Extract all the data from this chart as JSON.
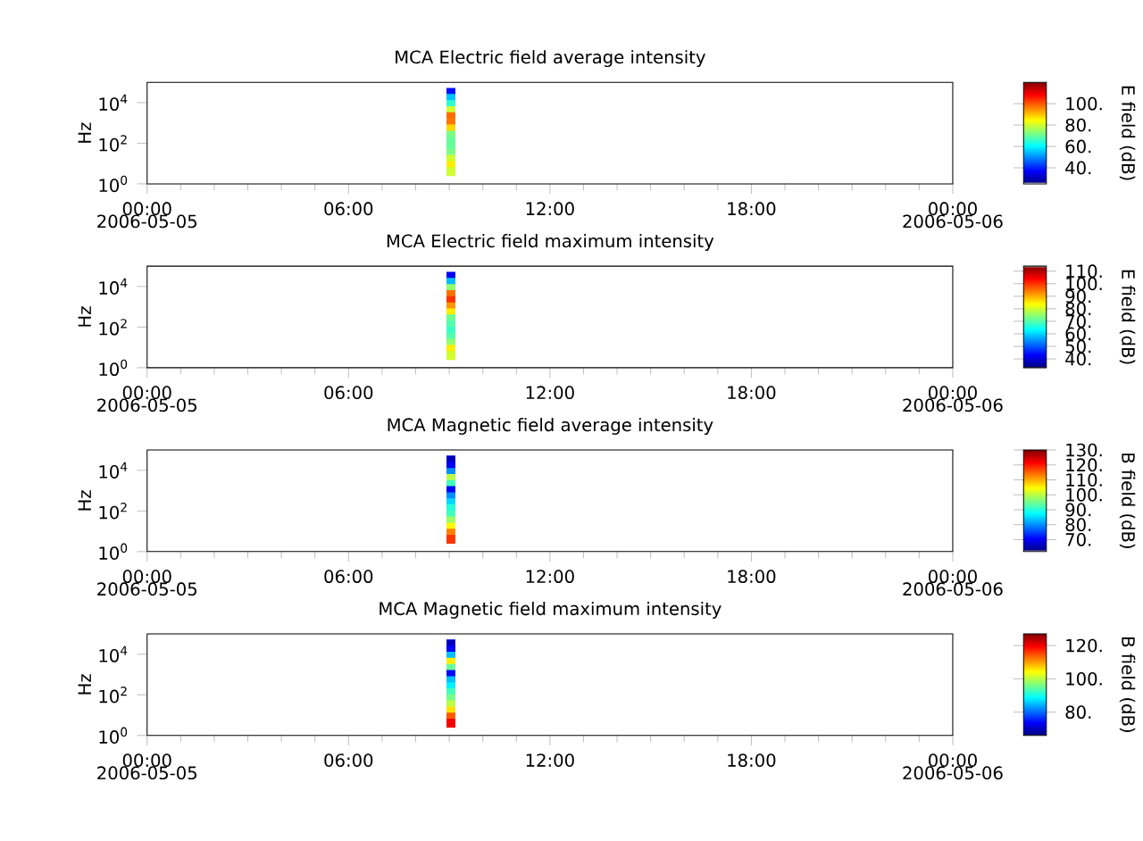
{
  "chart_data": [
    {
      "type": "scatter",
      "title": "MCA  Electric field average intensity",
      "ylabel": "Hz",
      "clabel": "E field (dB)",
      "marker": "square",
      "x": [
        "2006-05-05T09:03",
        "2006-05-05T09:03",
        "2006-05-05T09:03",
        "2006-05-05T09:03",
        "2006-05-05T09:03",
        "2006-05-05T09:03",
        "2006-05-05T09:03",
        "2006-05-05T09:03",
        "2006-05-05T09:03",
        "2006-05-05T09:03",
        "2006-05-05T09:03",
        "2006-05-05T09:03",
        "2006-05-05T09:03",
        "2006-05-05T09:03"
      ],
      "values": [
        32000,
        16000,
        7900,
        4000,
        2000,
        1000,
        500,
        250,
        130,
        63,
        32,
        16,
        8,
        4
      ],
      "cvalues": [
        38,
        55,
        65,
        80,
        98,
        97,
        88,
        72,
        70,
        70,
        72,
        80,
        86,
        80
      ],
      "xlim": [
        "2006-05-05T00:00",
        "2006-05-06T00:00"
      ],
      "xticks": [
        {
          "value": "2006-05-05T00:00",
          "label": "00:00"
        },
        {
          "value": "2006-05-05T06:00",
          "label": "06:00"
        },
        {
          "value": "2006-05-05T12:00",
          "label": "12:00"
        },
        {
          "value": "2006-05-05T18:00",
          "label": "18:00"
        },
        {
          "value": "2006-05-06T00:00",
          "label": "00:00"
        }
      ],
      "ylim": [
        1,
        100000
      ],
      "yticks": [
        {
          "value": 1,
          "label": "10$^{0}$"
        },
        {
          "value": 100,
          "label": "10$^{2}$"
        },
        {
          "value": 10000,
          "label": "10$^{4}$"
        }
      ],
      "log": "y",
      "clim": [
        25,
        120
      ],
      "cticks": [
        {
          "value": 40,
          "label": "40."
        },
        {
          "value": 60,
          "label": "60."
        },
        {
          "value": 80,
          "label": "80."
        },
        {
          "value": 100,
          "label": "100."
        }
      ],
      "annotations": [
        "2006-05-05",
        "2006-05-06"
      ]
    },
    {
      "type": "scatter",
      "title": "MCA  Electric field maximum intensity",
      "ylabel": "Hz",
      "clabel": "E field (dB)",
      "marker": "square",
      "x": [
        "2006-05-05T09:03",
        "2006-05-05T09:03",
        "2006-05-05T09:03",
        "2006-05-05T09:03",
        "2006-05-05T09:03",
        "2006-05-05T09:03",
        "2006-05-05T09:03",
        "2006-05-05T09:03",
        "2006-05-05T09:03",
        "2006-05-05T09:03",
        "2006-05-05T09:03",
        "2006-05-05T09:03",
        "2006-05-05T09:03",
        "2006-05-05T09:03"
      ],
      "values": [
        32000,
        16000,
        7900,
        4000,
        2000,
        1000,
        500,
        250,
        130,
        63,
        32,
        16,
        8,
        4
      ],
      "cvalues": [
        42,
        58,
        75,
        95,
        100,
        92,
        85,
        72,
        70,
        68,
        70,
        75,
        85,
        80
      ],
      "xlim": [
        "2006-05-05T00:00",
        "2006-05-06T00:00"
      ],
      "xticks": [
        {
          "value": "2006-05-05T00:00",
          "label": "00:00"
        },
        {
          "value": "2006-05-05T06:00",
          "label": "06:00"
        },
        {
          "value": "2006-05-05T12:00",
          "label": "12:00"
        },
        {
          "value": "2006-05-05T18:00",
          "label": "18:00"
        },
        {
          "value": "2006-05-06T00:00",
          "label": "00:00"
        }
      ],
      "ylim": [
        1,
        100000
      ],
      "yticks": [
        {
          "value": 1,
          "label": "10$^{0}$"
        },
        {
          "value": 100,
          "label": "10$^{2}$"
        },
        {
          "value": 10000,
          "label": "10$^{4}$"
        }
      ],
      "log": "y",
      "clim": [
        33,
        114
      ],
      "cticks": [
        {
          "value": 40,
          "label": "40."
        },
        {
          "value": 50,
          "label": "50."
        },
        {
          "value": 60,
          "label": "60."
        },
        {
          "value": 70,
          "label": "70."
        },
        {
          "value": 80,
          "label": "80."
        },
        {
          "value": 90,
          "label": "90."
        },
        {
          "value": 100,
          "label": "100."
        },
        {
          "value": 110,
          "label": "110."
        }
      ],
      "annotations": [
        "2006-05-05",
        "2006-05-06"
      ]
    },
    {
      "type": "scatter",
      "title": "MCA  Magnetic field average intensity",
      "ylabel": "Hz",
      "clabel": "B field (dB)",
      "marker": "square",
      "x": [
        "2006-05-05T09:03",
        "2006-05-05T09:03",
        "2006-05-05T09:03",
        "2006-05-05T09:03",
        "2006-05-05T09:03",
        "2006-05-05T09:03",
        "2006-05-05T09:03",
        "2006-05-05T09:03",
        "2006-05-05T09:03",
        "2006-05-05T09:03",
        "2006-05-05T09:03",
        "2006-05-05T09:03",
        "2006-05-05T09:03",
        "2006-05-05T09:03"
      ],
      "values": [
        32000,
        16000,
        7900,
        4000,
        2000,
        1000,
        500,
        250,
        130,
        63,
        32,
        16,
        8,
        4
      ],
      "cvalues": [
        66,
        70,
        80,
        100,
        92,
        70,
        80,
        85,
        90,
        92,
        98,
        105,
        113,
        118
      ],
      "xlim": [
        "2006-05-05T00:00",
        "2006-05-06T00:00"
      ],
      "xticks": [
        {
          "value": "2006-05-05T00:00",
          "label": "00:00"
        },
        {
          "value": "2006-05-05T06:00",
          "label": "06:00"
        },
        {
          "value": "2006-05-05T12:00",
          "label": "12:00"
        },
        {
          "value": "2006-05-05T18:00",
          "label": "18:00"
        },
        {
          "value": "2006-05-06T00:00",
          "label": "00:00"
        }
      ],
      "ylim": [
        1,
        100000
      ],
      "yticks": [
        {
          "value": 1,
          "label": "10$^{0}$"
        },
        {
          "value": 100,
          "label": "10$^{2}$"
        },
        {
          "value": 10000,
          "label": "10$^{4}$"
        }
      ],
      "log": "y",
      "clim": [
        62,
        130
      ],
      "cticks": [
        {
          "value": 70,
          "label": "70."
        },
        {
          "value": 80,
          "label": "80."
        },
        {
          "value": 90,
          "label": "90."
        },
        {
          "value": 100,
          "label": "100."
        },
        {
          "value": 110,
          "label": "110."
        },
        {
          "value": 120,
          "label": "120."
        },
        {
          "value": 130,
          "label": "130."
        }
      ],
      "annotations": [
        "2006-05-05",
        "2006-05-06"
      ]
    },
    {
      "type": "scatter",
      "title": "MCA  Magnetic field maximum intensity",
      "ylabel": "Hz",
      "clabel": "B field (dB)",
      "marker": "square",
      "x": [
        "2006-05-05T09:03",
        "2006-05-05T09:03",
        "2006-05-05T09:03",
        "2006-05-05T09:03",
        "2006-05-05T09:03",
        "2006-05-05T09:03",
        "2006-05-05T09:03",
        "2006-05-05T09:03",
        "2006-05-05T09:03",
        "2006-05-05T09:03",
        "2006-05-05T09:03",
        "2006-05-05T09:03",
        "2006-05-05T09:03",
        "2006-05-05T09:03"
      ],
      "values": [
        32000,
        16000,
        7900,
        4000,
        2000,
        1000,
        500,
        250,
        130,
        63,
        32,
        16,
        8,
        4
      ],
      "cvalues": [
        70,
        74,
        85,
        105,
        95,
        74,
        85,
        88,
        93,
        96,
        100,
        106,
        114,
        120
      ],
      "xlim": [
        "2006-05-05T00:00",
        "2006-05-06T00:00"
      ],
      "xticks": [
        {
          "value": "2006-05-05T00:00",
          "label": "00:00"
        },
        {
          "value": "2006-05-05T06:00",
          "label": "06:00"
        },
        {
          "value": "2006-05-05T12:00",
          "label": "12:00"
        },
        {
          "value": "2006-05-05T18:00",
          "label": "18:00"
        },
        {
          "value": "2006-05-06T00:00",
          "label": "00:00"
        }
      ],
      "ylim": [
        1,
        100000
      ],
      "yticks": [
        {
          "value": 1,
          "label": "10$^{0}$"
        },
        {
          "value": 100,
          "label": "10$^{2}$"
        },
        {
          "value": 10000,
          "label": "10$^{4}$"
        }
      ],
      "log": "y",
      "clim": [
        66,
        127
      ],
      "cticks": [
        {
          "value": 80,
          "label": "80."
        },
        {
          "value": 100,
          "label": "100."
        },
        {
          "value": 120,
          "label": "120."
        }
      ],
      "annotations": [
        "2006-05-05",
        "2006-05-06"
      ]
    }
  ]
}
